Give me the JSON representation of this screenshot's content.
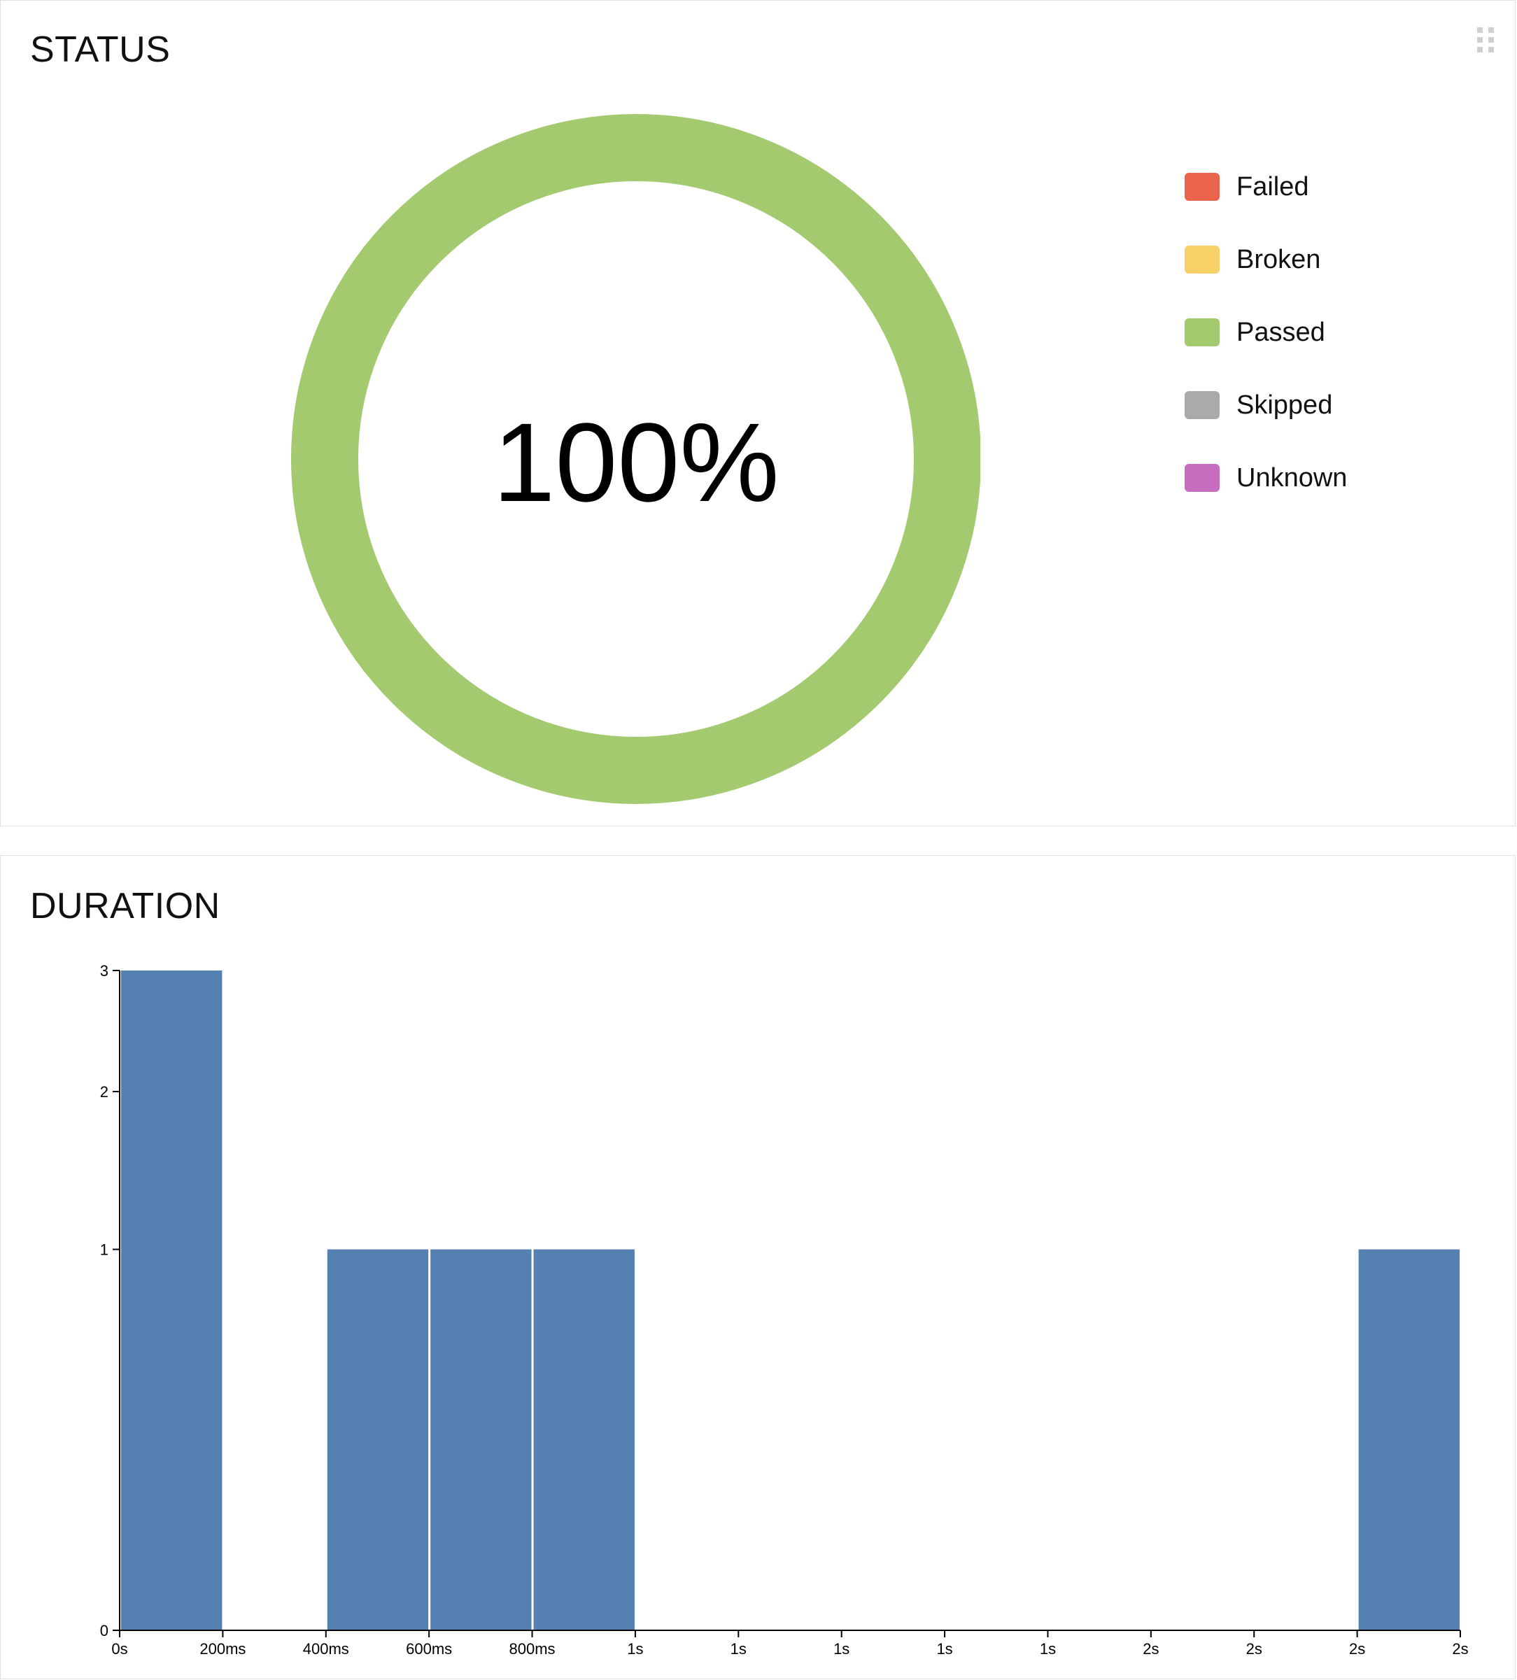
{
  "status_widget": {
    "title": "STATUS",
    "center_label": "100%",
    "legend": [
      {
        "label": "Failed",
        "color": "#e9644b"
      },
      {
        "label": "Broken",
        "color": "#f8d068"
      },
      {
        "label": "Passed",
        "color": "#a3ca6f"
      },
      {
        "label": "Skipped",
        "color": "#aaaaaa"
      },
      {
        "label": "Unknown",
        "color": "#c66dbf"
      }
    ],
    "icons": {
      "drag_handle": "drag-handle-icon"
    }
  },
  "duration_widget": {
    "title": "DURATION",
    "icons": {
      "drag_handle": "drag-handle-icon"
    }
  },
  "chart_data": [
    {
      "type": "pie",
      "title": "",
      "categories": [
        "Failed",
        "Broken",
        "Passed",
        "Skipped",
        "Unknown"
      ],
      "values": [
        0,
        0,
        100,
        0,
        0
      ],
      "colors": [
        "#e9644b",
        "#f8d068",
        "#a3ca6f",
        "#aaaaaa",
        "#c66dbf"
      ],
      "center_label": "100%",
      "legend": "right",
      "donut": true
    },
    {
      "type": "bar",
      "title": "",
      "xlabel": "",
      "ylabel": "",
      "x_tick_labels": [
        "0s",
        "200ms",
        "400ms",
        "600ms",
        "800ms",
        "1s",
        "1s",
        "1s",
        "1s",
        "1s",
        "2s",
        "2s",
        "2s",
        "2s"
      ],
      "y_ticks": [
        0,
        1,
        2,
        3
      ],
      "ylim": [
        0,
        3
      ],
      "bins": [
        "0s-200ms",
        "200ms-400ms",
        "400ms-600ms",
        "600ms-800ms",
        "800ms-1s",
        "1s-1s",
        "1s-1s",
        "1s-1s",
        "1s-1s",
        "1s-2s",
        "2s-2s",
        "2s-2s",
        "2s-2s"
      ],
      "values": [
        3,
        0,
        1,
        1,
        1,
        0,
        0,
        0,
        0,
        0,
        0,
        0,
        1
      ],
      "bar_color": "#5581b2",
      "grid": false
    }
  ]
}
